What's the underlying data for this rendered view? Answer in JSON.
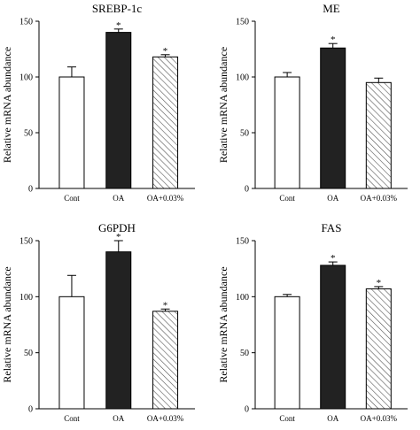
{
  "colors": {
    "open_bar_fill": "#ffffff",
    "solid_bar_fill": "#222222",
    "hatch_stroke": "#555555",
    "axis": "#000000"
  },
  "chart_data": [
    {
      "type": "bar",
      "title": "SREBP-1c",
      "ylabel": "Relative mRNA abundance",
      "ylim": [
        0,
        150
      ],
      "yticks": [
        0,
        50,
        100,
        150
      ],
      "categories": [
        "Cont",
        "OA",
        "OA+0.03%"
      ],
      "values": [
        100,
        140,
        118
      ],
      "errors": [
        9,
        3,
        2
      ],
      "significance": [
        "",
        "*",
        "*"
      ],
      "bar_styles": [
        "open",
        "solid",
        "hatched"
      ]
    },
    {
      "type": "bar",
      "title": "ME",
      "ylabel": "Relative mRNA abundance",
      "ylim": [
        0,
        150
      ],
      "yticks": [
        0,
        50,
        100,
        150
      ],
      "categories": [
        "Cont",
        "OA",
        "OA+0.03%"
      ],
      "values": [
        100,
        126,
        95
      ],
      "errors": [
        4,
        4,
        4
      ],
      "significance": [
        "",
        "*",
        ""
      ],
      "bar_styles": [
        "open",
        "solid",
        "hatched"
      ]
    },
    {
      "type": "bar",
      "title": "G6PDH",
      "ylabel": "Relative mRNA abundance",
      "ylim": [
        0,
        150
      ],
      "yticks": [
        0,
        50,
        100,
        150
      ],
      "categories": [
        "Cont",
        "OA",
        "OA+0.03%"
      ],
      "values": [
        100,
        140,
        87
      ],
      "errors": [
        19,
        10,
        2
      ],
      "significance": [
        "",
        "*",
        "*"
      ],
      "bar_styles": [
        "open",
        "solid",
        "hatched"
      ]
    },
    {
      "type": "bar",
      "title": "FAS",
      "ylabel": "Relative mRNA abundance",
      "ylim": [
        0,
        150
      ],
      "yticks": [
        0,
        50,
        100,
        150
      ],
      "categories": [
        "Cont",
        "OA",
        "OA+0.03%"
      ],
      "values": [
        100,
        128,
        107
      ],
      "errors": [
        2,
        3,
        2
      ],
      "significance": [
        "",
        "*",
        "*"
      ],
      "bar_styles": [
        "open",
        "solid",
        "hatched"
      ]
    }
  ]
}
